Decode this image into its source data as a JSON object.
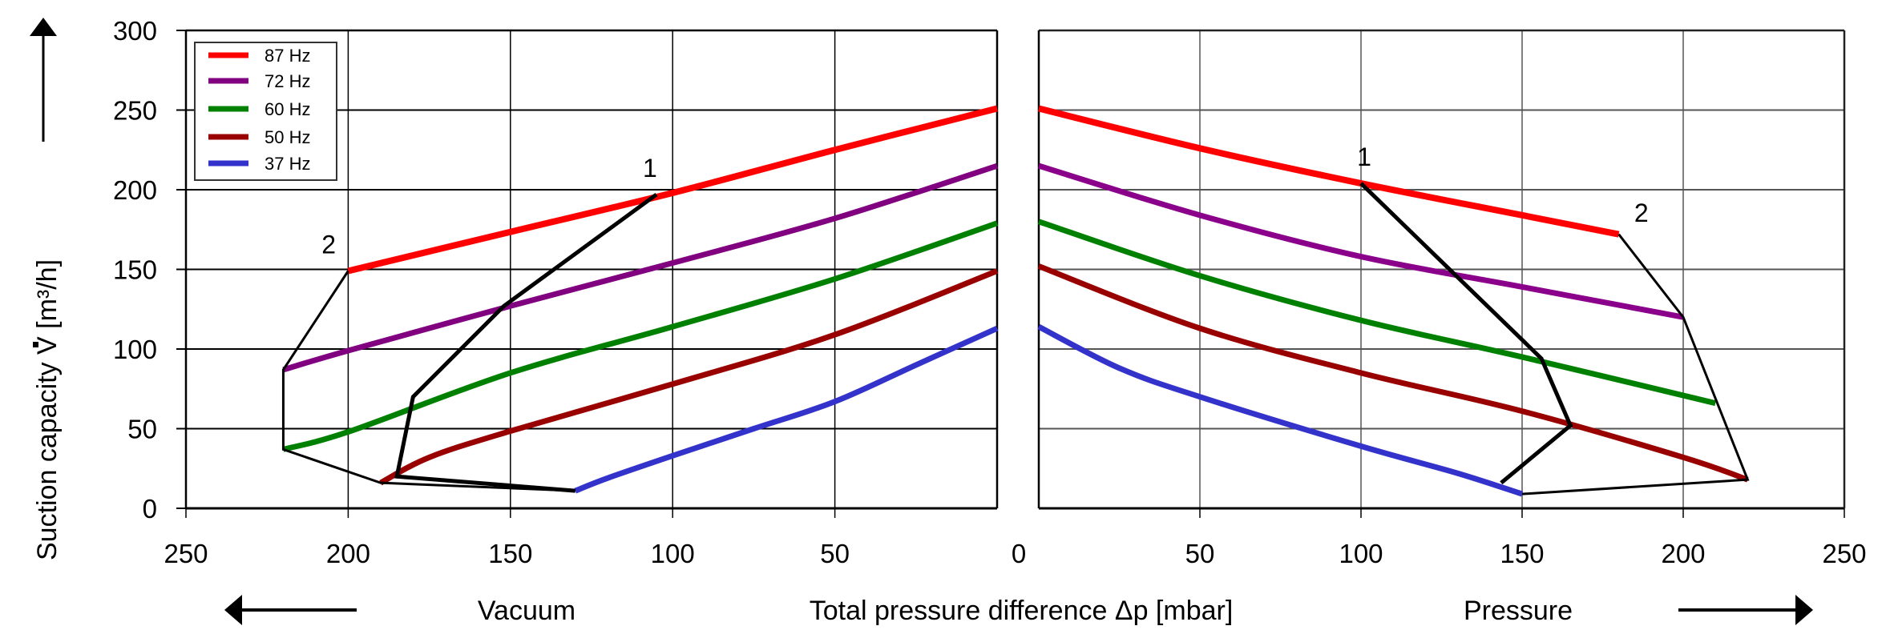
{
  "chart_data": [
    {
      "panel": "vacuum",
      "type": "line",
      "x_direction": "reversed",
      "xlim": [
        0,
        250
      ],
      "ylim": [
        0,
        300
      ],
      "xticks": [
        "250",
        "200",
        "150",
        "100",
        "50"
      ],
      "xtick_values": [
        250,
        200,
        150,
        100,
        50
      ],
      "yticks": [
        "0",
        "50",
        "100",
        "150",
        "200",
        "250",
        "300"
      ],
      "ytick_values": [
        0,
        50,
        100,
        150,
        200,
        250,
        300
      ],
      "grid": true,
      "series": [
        {
          "name": "87 Hz",
          "color": "#ff0000",
          "x": [
            0,
            50,
            100,
            150,
            200
          ],
          "y": [
            251,
            225,
            198,
            173.5,
            149
          ]
        },
        {
          "name": "72 Hz",
          "color": "#800080",
          "x": [
            0,
            50,
            100,
            150,
            200,
            220
          ],
          "y": [
            215,
            182,
            154,
            127,
            99,
            87
          ]
        },
        {
          "name": "60 Hz",
          "color": "#008000",
          "x": [
            0,
            50,
            100,
            150,
            200,
            220
          ],
          "y": [
            179,
            144,
            114,
            85,
            48,
            37
          ]
        },
        {
          "name": "50 Hz",
          "color": "#990000",
          "x": [
            0,
            50,
            100,
            150,
            175,
            190
          ],
          "y": [
            149,
            109,
            78,
            48.5,
            32,
            16
          ]
        },
        {
          "name": "37 Hz",
          "color": "#3333cc",
          "x": [
            0,
            25,
            50,
            75,
            100,
            120,
            130
          ],
          "y": [
            113,
            90,
            67,
            50,
            33,
            19,
            11
          ]
        }
      ],
      "limit_lines": [
        {
          "label": "1",
          "x": [
            105,
            152,
            180,
            185,
            130
          ],
          "y": [
            197,
            127,
            70,
            20,
            11
          ]
        },
        {
          "label": "2",
          "x": [
            200,
            220,
            220,
            190,
            130
          ],
          "y": [
            149,
            87,
            37,
            16,
            11
          ]
        }
      ],
      "annotations": [
        {
          "text": "1",
          "x": 107,
          "y": 208
        },
        {
          "text": "2",
          "x": 206,
          "y": 160
        }
      ]
    },
    {
      "panel": "pressure",
      "type": "line",
      "x_direction": "normal",
      "xlim": [
        0,
        250
      ],
      "ylim": [
        0,
        300
      ],
      "xticks": [
        "50",
        "100",
        "150",
        "200",
        "250"
      ],
      "xtick_values": [
        50,
        100,
        150,
        200,
        250
      ],
      "grid": true,
      "series": [
        {
          "name": "87 Hz",
          "color": "#ff0000",
          "x": [
            0,
            50,
            100,
            150,
            180
          ],
          "y": [
            251,
            226,
            204,
            184,
            172
          ]
        },
        {
          "name": "72 Hz",
          "color": "#8b008b",
          "x": [
            0,
            50,
            100,
            150,
            200
          ],
          "y": [
            215,
            184,
            158,
            139,
            120
          ]
        },
        {
          "name": "60 Hz",
          "color": "#008000",
          "x": [
            0,
            50,
            100,
            150,
            210
          ],
          "y": [
            180,
            146,
            118,
            95,
            66
          ]
        },
        {
          "name": "50 Hz",
          "color": "#990000",
          "x": [
            0,
            50,
            100,
            150,
            200,
            220
          ],
          "y": [
            152,
            113,
            85,
            61,
            32,
            18
          ]
        },
        {
          "name": "37 Hz",
          "color": "#3333cc",
          "x": [
            0,
            25,
            50,
            100,
            130,
            150
          ],
          "y": [
            114,
            88,
            70,
            39,
            22,
            9
          ]
        }
      ],
      "limit_lines": [
        {
          "label": "1",
          "x": [
            100,
            156,
            165,
            143.5
          ],
          "y": [
            204,
            94,
            52,
            16
          ]
        },
        {
          "label": "2",
          "x": [
            180,
            200,
            220,
            150
          ],
          "y": [
            172,
            120,
            18,
            9
          ]
        }
      ],
      "annotations": [
        {
          "text": "1",
          "x": 101,
          "y": 215
        },
        {
          "text": "2",
          "x": 187,
          "y": 180
        }
      ]
    }
  ],
  "zero_label": "0",
  "y_axis_title": "Suction capacity V   [m³/h]",
  "x_axis_title": "Total pressure difference  Δp   [mbar]",
  "vacuum_label": "Vacuum",
  "pressure_label": "Pressure",
  "legend": {
    "position": "top-left",
    "entries": [
      {
        "label": "87 Hz",
        "color": "#ff0000"
      },
      {
        "label": "72 Hz",
        "color": "#800080"
      },
      {
        "label": "60 Hz",
        "color": "#008000"
      },
      {
        "label": "50 Hz",
        "color": "#990000"
      },
      {
        "label": "37 Hz",
        "color": "#3333cc"
      }
    ]
  }
}
